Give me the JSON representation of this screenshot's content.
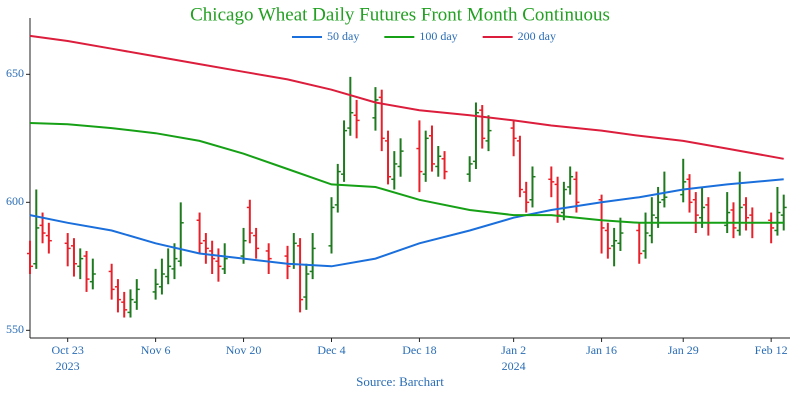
{
  "chart_data": {
    "type": "ohlc",
    "title": "Chicago Wheat Daily Futures Front Month Continuous",
    "source": "Source: Barchart",
    "up_color": "#1f7a1f",
    "down_color": "#e8202a",
    "xlim": [
      "2023-10-17",
      "2024-02-15"
    ],
    "ylim": [
      547,
      672
    ],
    "yticks": [
      550,
      600,
      650
    ],
    "xticks": [
      {
        "value": "2023-10-23",
        "label": "Oct 23",
        "year": "2023"
      },
      {
        "value": "2023-11-06",
        "label": "Nov 6"
      },
      {
        "value": "2023-11-20",
        "label": "Nov 20"
      },
      {
        "value": "2023-12-04",
        "label": "Dec 4"
      },
      {
        "value": "2023-12-18",
        "label": "Dec 18"
      },
      {
        "value": "2024-01-02",
        "label": "Jan 2",
        "year": "2024"
      },
      {
        "value": "2024-01-16",
        "label": "Jan 16"
      },
      {
        "value": "2024-01-29",
        "label": "Jan 29"
      },
      {
        "value": "2024-02-12",
        "label": "Feb 12"
      }
    ],
    "x": [
      "2023-10-17",
      "2023-10-18",
      "2023-10-19",
      "2023-10-20",
      "2023-10-23",
      "2023-10-24",
      "2023-10-25",
      "2023-10-26",
      "2023-10-27",
      "2023-10-30",
      "2023-10-31",
      "2023-11-01",
      "2023-11-02",
      "2023-11-03",
      "2023-11-06",
      "2023-11-07",
      "2023-11-08",
      "2023-11-09",
      "2023-11-10",
      "2023-11-13",
      "2023-11-14",
      "2023-11-15",
      "2023-11-16",
      "2023-11-17",
      "2023-11-20",
      "2023-11-21",
      "2023-11-22",
      "2023-11-24",
      "2023-11-27",
      "2023-11-28",
      "2023-11-29",
      "2023-11-30",
      "2023-12-01",
      "2023-12-04",
      "2023-12-05",
      "2023-12-06",
      "2023-12-07",
      "2023-12-08",
      "2023-12-11",
      "2023-12-12",
      "2023-12-13",
      "2023-12-14",
      "2023-12-15",
      "2023-12-18",
      "2023-12-19",
      "2023-12-20",
      "2023-12-21",
      "2023-12-22",
      "2023-12-26",
      "2023-12-27",
      "2023-12-28",
      "2023-12-29",
      "2024-01-02",
      "2024-01-03",
      "2024-01-04",
      "2024-01-05",
      "2024-01-08",
      "2024-01-09",
      "2024-01-10",
      "2024-01-11",
      "2024-01-12",
      "2024-01-16",
      "2024-01-17",
      "2024-01-18",
      "2024-01-19",
      "2024-01-22",
      "2024-01-23",
      "2024-01-24",
      "2024-01-25",
      "2024-01-26",
      "2024-01-29",
      "2024-01-30",
      "2024-01-31",
      "2024-02-01",
      "2024-02-02",
      "2024-02-05",
      "2024-02-06",
      "2024-02-07",
      "2024-02-08",
      "2024-02-09",
      "2024-02-12",
      "2024-02-13",
      "2024-02-14"
    ],
    "ohlc": [
      [
        580,
        585,
        572,
        575
      ],
      [
        576,
        605,
        574,
        590
      ],
      [
        591,
        596,
        584,
        588
      ],
      [
        587,
        592,
        580,
        585
      ],
      [
        584,
        588,
        575,
        582
      ],
      [
        583,
        586,
        571,
        576
      ],
      [
        575,
        582,
        570,
        578
      ],
      [
        579,
        581,
        565,
        570
      ],
      [
        569,
        578,
        566,
        572
      ],
      [
        573,
        576,
        562,
        566
      ],
      [
        567,
        570,
        557,
        562
      ],
      [
        561,
        565,
        555,
        558
      ],
      [
        557,
        566,
        555,
        562
      ],
      [
        561,
        570,
        558,
        566
      ],
      [
        565,
        574,
        562,
        568
      ],
      [
        567,
        578,
        564,
        572
      ],
      [
        571,
        582,
        568,
        575
      ],
      [
        574,
        584,
        570,
        578
      ],
      [
        577,
        600,
        575,
        592
      ],
      [
        593,
        596,
        580,
        584
      ],
      [
        585,
        588,
        576,
        582
      ],
      [
        581,
        585,
        572,
        578
      ],
      [
        577,
        582,
        569,
        575
      ],
      [
        574,
        584,
        572,
        578
      ],
      [
        579,
        590,
        576,
        585
      ],
      [
        598,
        601,
        584,
        588
      ],
      [
        587,
        590,
        578,
        582
      ],
      [
        581,
        584,
        572,
        578
      ],
      [
        579,
        583,
        570,
        575
      ],
      [
        576,
        588,
        574,
        584
      ],
      [
        583,
        586,
        557,
        562
      ],
      [
        563,
        576,
        558,
        572
      ],
      [
        573,
        588,
        570,
        582
      ],
      [
        583,
        602,
        580,
        598
      ],
      [
        599,
        615,
        596,
        612
      ],
      [
        611,
        632,
        608,
        628
      ],
      [
        629,
        649,
        626,
        635
      ],
      [
        634,
        640,
        625,
        632
      ],
      [
        633,
        645,
        628,
        640
      ],
      [
        641,
        644,
        620,
        625
      ],
      [
        624,
        628,
        607,
        610
      ],
      [
        609,
        620,
        605,
        615
      ],
      [
        614,
        625,
        610,
        620
      ],
      [
        621,
        632,
        604,
        612
      ],
      [
        611,
        628,
        608,
        625
      ],
      [
        626,
        630,
        612,
        615
      ],
      [
        614,
        622,
        610,
        618
      ],
      [
        617,
        620,
        609,
        612
      ],
      [
        611,
        618,
        608,
        615
      ],
      [
        616,
        639,
        613,
        635
      ],
      [
        636,
        638,
        621,
        625
      ],
      [
        624,
        634,
        620,
        628
      ],
      [
        629,
        632,
        618,
        625
      ],
      [
        624,
        626,
        602,
        605
      ],
      [
        604,
        608,
        596,
        600
      ],
      [
        601,
        614,
        598,
        610
      ],
      [
        609,
        614,
        602,
        608
      ],
      [
        607,
        610,
        592,
        595
      ],
      [
        596,
        608,
        593,
        605
      ],
      [
        606,
        614,
        603,
        610
      ],
      [
        609,
        612,
        596,
        600
      ],
      [
        601,
        603,
        580,
        590
      ],
      [
        589,
        592,
        578,
        582
      ],
      [
        583,
        590,
        575,
        585
      ],
      [
        584,
        594,
        581,
        588
      ],
      [
        589,
        592,
        576,
        580
      ],
      [
        581,
        596,
        578,
        588
      ],
      [
        587,
        602,
        584,
        595
      ],
      [
        594,
        606,
        590,
        600
      ],
      [
        601,
        612,
        598,
        602
      ],
      [
        603,
        617,
        600,
        608
      ],
      [
        609,
        611,
        596,
        600
      ],
      [
        601,
        604,
        588,
        595
      ],
      [
        594,
        606,
        590,
        598
      ],
      [
        599,
        602,
        587,
        592
      ],
      [
        591,
        604,
        588,
        596
      ],
      [
        597,
        600,
        586,
        590
      ],
      [
        589,
        612,
        587,
        598
      ],
      [
        599,
        602,
        589,
        594
      ],
      [
        595,
        598,
        586,
        592
      ],
      [
        593,
        596,
        584,
        590
      ],
      [
        589,
        606,
        587,
        596
      ],
      [
        595,
        603,
        589,
        598
      ]
    ],
    "series": [
      {
        "name": "50 day",
        "color": "#1a6fdc",
        "x": [
          "2023-10-17",
          "2023-10-23",
          "2023-10-30",
          "2023-11-06",
          "2023-11-13",
          "2023-11-20",
          "2023-11-27",
          "2023-12-04",
          "2023-12-11",
          "2023-12-18",
          "2023-12-26",
          "2024-01-02",
          "2024-01-08",
          "2024-01-16",
          "2024-01-22",
          "2024-01-29",
          "2024-02-05",
          "2024-02-14"
        ],
        "values": [
          595,
          592,
          589,
          584,
          580,
          578,
          576,
          575,
          578,
          584,
          589,
          594,
          597,
          600,
          602,
          605,
          607,
          609
        ]
      },
      {
        "name": "100 day",
        "color": "#16a016",
        "x": [
          "2023-10-17",
          "2023-10-23",
          "2023-10-30",
          "2023-11-06",
          "2023-11-13",
          "2023-11-20",
          "2023-11-27",
          "2023-12-04",
          "2023-12-11",
          "2023-12-18",
          "2023-12-26",
          "2024-01-02",
          "2024-01-08",
          "2024-01-16",
          "2024-01-22",
          "2024-01-29",
          "2024-02-05",
          "2024-02-14"
        ],
        "values": [
          631,
          630.5,
          629,
          627,
          624,
          619,
          613,
          607,
          606,
          601,
          597,
          595,
          595,
          593,
          592,
          592,
          592,
          592
        ]
      },
      {
        "name": "200 day",
        "color": "#dc1e3c",
        "x": [
          "2023-10-17",
          "2023-10-23",
          "2023-10-30",
          "2023-11-06",
          "2023-11-13",
          "2023-11-20",
          "2023-11-27",
          "2023-12-04",
          "2023-12-11",
          "2023-12-18",
          "2023-12-26",
          "2024-01-02",
          "2024-01-08",
          "2024-01-16",
          "2024-01-22",
          "2024-01-29",
          "2024-02-05",
          "2024-02-14"
        ],
        "values": [
          665,
          663,
          660,
          657,
          654,
          651,
          648,
          644,
          639,
          636,
          634,
          632,
          630,
          628,
          626,
          624,
          621,
          617
        ]
      }
    ]
  }
}
